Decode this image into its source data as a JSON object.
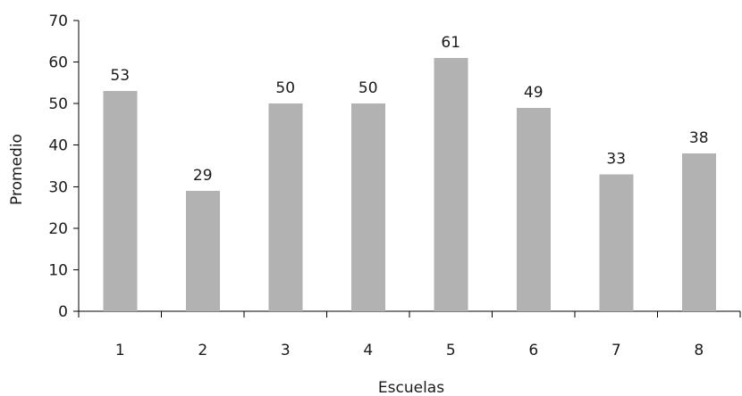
{
  "chart_data": {
    "type": "bar",
    "categories": [
      "1",
      "2",
      "3",
      "4",
      "5",
      "6",
      "7",
      "8"
    ],
    "values": [
      53,
      29,
      50,
      50,
      61,
      49,
      33,
      38
    ],
    "data_labels": [
      "53",
      "29",
      "50",
      "50",
      "61",
      "49",
      "33",
      "38"
    ],
    "title": "",
    "xlabel": "Escuelas",
    "ylabel": "Promedio",
    "ylim": [
      0,
      70
    ],
    "y_ticks": [
      0,
      10,
      20,
      30,
      40,
      50,
      60,
      70
    ],
    "y_tick_labels": [
      "0",
      "10",
      "20",
      "30",
      "40",
      "50",
      "60",
      "70"
    ],
    "grid": false,
    "legend": "none",
    "bar_color": "#b2b2b2"
  }
}
